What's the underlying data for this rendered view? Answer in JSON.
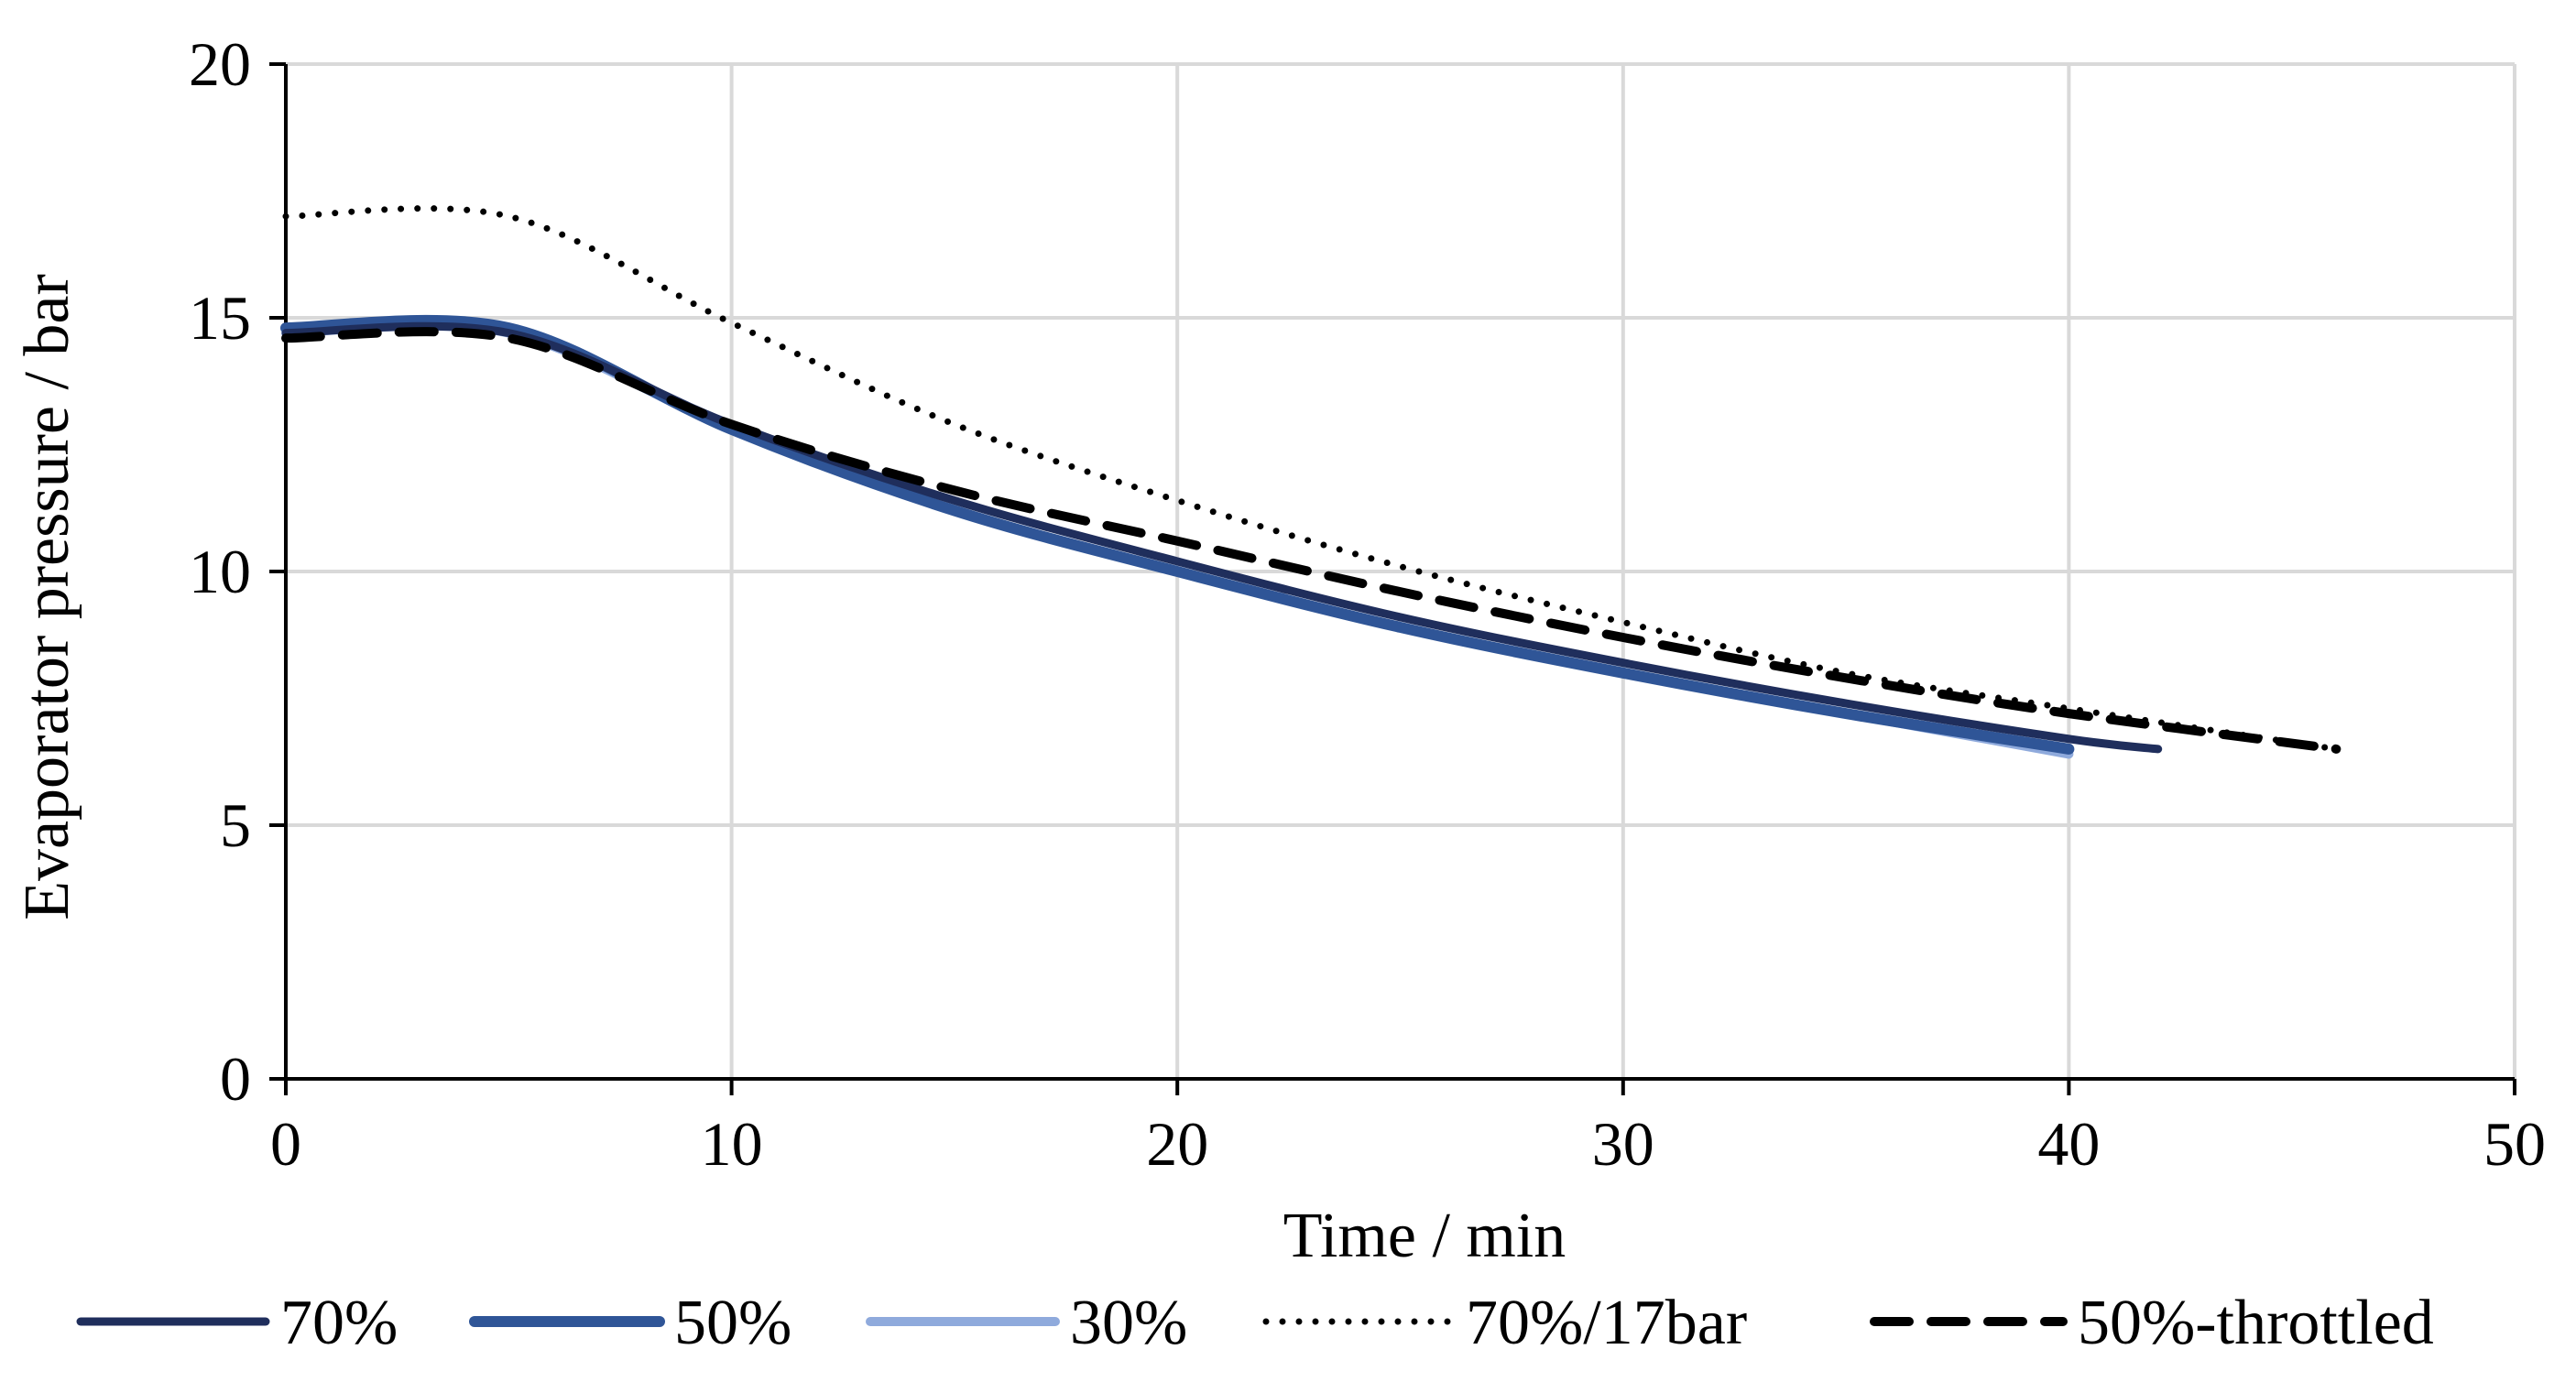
{
  "chart_data": {
    "type": "line",
    "title": "",
    "xlabel": "Time / min",
    "ylabel": "Evaporator pressure / bar",
    "xlim": [
      0,
      50
    ],
    "ylim": [
      0,
      20
    ],
    "x_ticks": [
      0,
      10,
      20,
      30,
      40,
      50
    ],
    "y_ticks": [
      0,
      5,
      10,
      15,
      20
    ],
    "x_tick_labels": [
      "0",
      "10",
      "20",
      "30",
      "40",
      "50"
    ],
    "y_tick_labels": [
      "0",
      "5",
      "10",
      "15",
      "20"
    ],
    "grid": true,
    "legend_position": "bottom",
    "series": [
      {
        "name": "70%",
        "color": "#1f2e5c",
        "style": "solid",
        "x": [
          0,
          5,
          10,
          15,
          20,
          25,
          30,
          35,
          40,
          42
        ],
        "y": [
          14.7,
          14.7,
          12.9,
          11.4,
          10.2,
          9.1,
          8.2,
          7.4,
          6.7,
          6.5
        ]
      },
      {
        "name": "50%",
        "color": "#2f5597",
        "style": "solid",
        "x": [
          0,
          5,
          10,
          15,
          20,
          25,
          30,
          35,
          40
        ],
        "y": [
          14.8,
          14.8,
          12.8,
          11.2,
          10.0,
          8.9,
          8.0,
          7.2,
          6.5
        ]
      },
      {
        "name": "30%",
        "color": "#8faadc",
        "style": "solid",
        "x": [
          0,
          5,
          10,
          15,
          20,
          25,
          30,
          35,
          40
        ],
        "y": [
          14.7,
          14.7,
          12.8,
          11.2,
          10.0,
          8.9,
          8.0,
          7.2,
          6.4
        ]
      },
      {
        "name": "70%/17bar",
        "color": "#000000",
        "style": "dotted",
        "x": [
          0,
          5,
          10,
          15,
          20,
          25,
          30,
          35,
          40,
          46
        ],
        "y": [
          17.0,
          17.0,
          14.9,
          12.9,
          11.4,
          10.1,
          9.0,
          8.0,
          7.3,
          6.5
        ]
      },
      {
        "name": "50%-throttled",
        "color": "#000000",
        "style": "dashed",
        "x": [
          0,
          5,
          10,
          15,
          20,
          25,
          30,
          35,
          40,
          46
        ],
        "y": [
          14.6,
          14.6,
          12.9,
          11.6,
          10.6,
          9.6,
          8.7,
          7.9,
          7.2,
          6.5
        ]
      }
    ]
  }
}
